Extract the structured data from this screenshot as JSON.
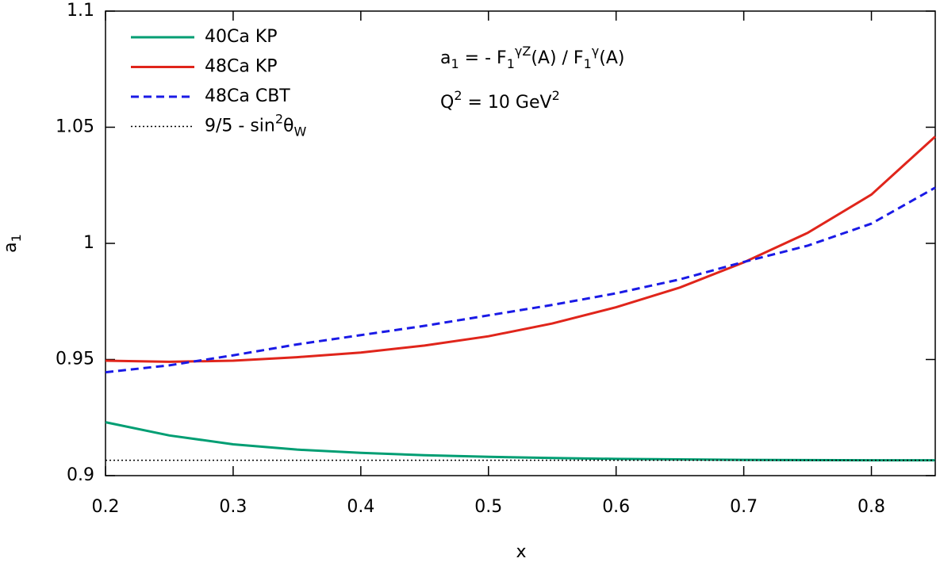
{
  "chart_data": {
    "type": "line",
    "xlabel": "x",
    "ylabel": [
      {
        "text": "a"
      },
      {
        "sub": "1"
      }
    ],
    "annotations": [
      [
        {
          "text": "a"
        },
        {
          "sub": "1"
        },
        {
          "text": " = - F"
        },
        {
          "sub": "1"
        },
        {
          "sup": "γZ"
        },
        {
          "text": "(A) / F"
        },
        {
          "sub": "1"
        },
        {
          "sup": "γ"
        },
        {
          "text": "(A)"
        }
      ],
      [
        {
          "text": "Q"
        },
        {
          "sup": "2"
        },
        {
          "text": " = 10 GeV"
        },
        {
          "sup": "2"
        }
      ]
    ],
    "x": [
      0.2,
      0.25,
      0.3,
      0.35,
      0.4,
      0.45,
      0.5,
      0.55,
      0.6,
      0.65,
      0.7,
      0.75,
      0.8,
      0.85
    ],
    "series": [
      {
        "name": "40Ca KP",
        "color": "#009e73",
        "dash": "solid",
        "values": [
          0.923,
          0.9173,
          0.9135,
          0.9112,
          0.9098,
          0.9088,
          0.9081,
          0.9076,
          0.9072,
          0.907,
          0.9068,
          0.9067,
          0.9066,
          0.9066
        ]
      },
      {
        "name": "48Ca KP",
        "color": "#e0251b",
        "dash": "solid",
        "values": [
          0.9495,
          0.949,
          0.9495,
          0.951,
          0.953,
          0.956,
          0.96,
          0.9655,
          0.9725,
          0.981,
          0.9918,
          1.0045,
          1.021,
          1.046
        ]
      },
      {
        "name": "48Ca CBT",
        "color": "#1a1ae6",
        "dash": "dashed",
        "values": [
          0.9445,
          0.9475,
          0.9518,
          0.9565,
          0.9605,
          0.9645,
          0.969,
          0.9735,
          0.9785,
          0.9845,
          0.992,
          0.999,
          1.0085,
          1.024
        ]
      },
      {
        "name": [
          {
            "text": "9/5 - sin"
          },
          {
            "sup": "2"
          },
          {
            "text": "θ"
          },
          {
            "sub": "W"
          }
        ],
        "color": "#000000",
        "dash": "dotted",
        "values": [
          0.9066,
          0.9066,
          0.9066,
          0.9066,
          0.9066,
          0.9066,
          0.9066,
          0.9066,
          0.9066,
          0.9066,
          0.9066,
          0.9066,
          0.9066,
          0.9066
        ]
      }
    ],
    "xlim": [
      0.2,
      0.85
    ],
    "xticks": [
      0.2,
      0.3,
      0.4,
      0.5,
      0.6,
      0.7,
      0.8
    ],
    "ylim": [
      0.9,
      1.1
    ],
    "yticks": [
      0.9,
      0.95,
      1,
      1.05,
      1.1
    ],
    "legend": "upper-left",
    "grid": false
  }
}
